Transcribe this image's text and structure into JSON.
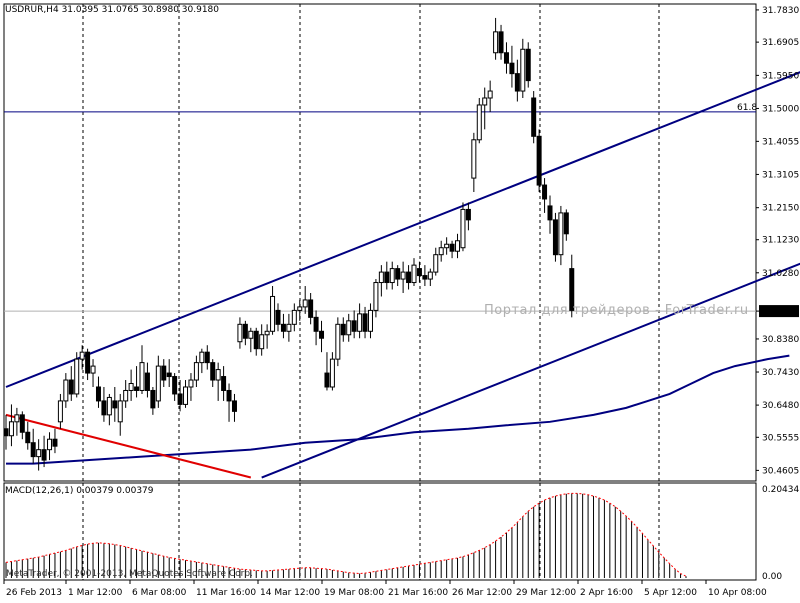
{
  "header": {
    "symbol": "USDRUR,H4",
    "ohlc": "31.0395 31.0765 30.8980 30.9180"
  },
  "indicator": {
    "macd_label": "MACD(12,26,1) 0.00379 0.00379"
  },
  "footer": {
    "copyright": "MetaTrader, © 2001-2013, MetaQuotes Software Corp."
  },
  "watermark": "Портал для трейдеров - ForTrader.ru",
  "colors": {
    "background": "#ffffff",
    "candle": "#000000",
    "channel": "#000080",
    "moving_average": "#000080",
    "fib_line": "#000080",
    "red_trendline": "#e00000",
    "macd_bars": "#000000",
    "macd_signal": "#ff0000",
    "grid_vertical": "#000000",
    "current_price_line": "#b0b0b0"
  },
  "chart_data": [
    {
      "type": "candlestick",
      "title": "USDRUR,H4",
      "ylim": [
        30.43,
        31.8
      ],
      "y_ticks": [
        "31.7830",
        "31.6905",
        "31.5950",
        "31.5000",
        "31.4055",
        "31.3105",
        "31.2150",
        "31.1230",
        "31.0280",
        "30.9180",
        "30.8380",
        "30.7430",
        "30.6480",
        "30.5555",
        "30.4605"
      ],
      "current_price": "30.9180",
      "fib_level": {
        "label": "61.8",
        "value": 31.49
      },
      "x_ticks": [
        "26 Feb 2013",
        "1 Mar 12:00",
        "6 Mar 08:00",
        "11 Mar 16:00",
        "14 Mar 12:00",
        "19 Mar 08:00",
        "21 Mar 16:00",
        "26 Mar 12:00",
        "29 Mar 12:00",
        "2 Apr 16:00",
        "5 Apr 12:00",
        "10 Apr 08:00"
      ],
      "grid": "vertical dashed",
      "candles": [
        [
          30.58,
          30.62,
          30.52,
          30.56
        ],
        [
          30.56,
          30.65,
          30.53,
          30.6
        ],
        [
          30.6,
          30.64,
          30.56,
          30.62
        ],
        [
          30.62,
          30.63,
          30.55,
          30.57
        ],
        [
          30.57,
          30.6,
          30.52,
          30.54
        ],
        [
          30.54,
          30.58,
          30.48,
          30.5
        ],
        [
          30.5,
          30.55,
          30.46,
          30.52
        ],
        [
          30.52,
          30.56,
          30.47,
          30.49
        ],
        [
          30.52,
          30.57,
          30.49,
          30.55
        ],
        [
          30.55,
          30.58,
          30.51,
          30.53
        ],
        [
          30.6,
          30.68,
          30.58,
          30.66
        ],
        [
          30.66,
          30.74,
          30.64,
          30.72
        ],
        [
          30.72,
          30.76,
          30.66,
          30.68
        ],
        [
          30.68,
          30.8,
          30.67,
          30.78
        ],
        [
          30.78,
          30.82,
          30.75,
          30.8
        ],
        [
          30.8,
          30.81,
          30.72,
          30.74
        ],
        [
          30.74,
          30.78,
          30.7,
          30.76
        ],
        [
          30.7,
          30.73,
          30.64,
          30.66
        ],
        [
          30.66,
          30.7,
          30.6,
          30.62
        ],
        [
          30.62,
          30.68,
          30.59,
          30.67
        ],
        [
          30.66,
          30.7,
          30.6,
          30.64
        ],
        [
          30.6,
          30.68,
          30.56,
          30.66
        ],
        [
          30.66,
          30.72,
          30.64,
          30.69
        ],
        [
          30.69,
          30.75,
          30.66,
          30.71
        ],
        [
          30.7,
          30.76,
          30.67,
          30.69
        ],
        [
          30.69,
          30.82,
          30.68,
          30.77
        ],
        [
          30.74,
          30.77,
          30.67,
          30.69
        ],
        [
          30.69,
          30.7,
          30.62,
          30.64
        ],
        [
          30.66,
          30.79,
          30.64,
          30.76
        ],
        [
          30.76,
          30.78,
          30.7,
          30.72
        ],
        [
          30.74,
          30.78,
          30.7,
          30.73
        ],
        [
          30.73,
          30.74,
          30.66,
          30.68
        ],
        [
          30.68,
          30.72,
          30.63,
          30.65
        ],
        [
          30.65,
          30.72,
          30.64,
          30.7
        ],
        [
          30.7,
          30.74,
          30.66,
          30.72
        ],
        [
          30.72,
          30.79,
          30.7,
          30.77
        ],
        [
          30.77,
          30.81,
          30.74,
          30.8
        ],
        [
          30.8,
          30.82,
          30.75,
          30.77
        ],
        [
          30.77,
          30.78,
          30.7,
          30.72
        ],
        [
          30.72,
          30.77,
          30.66,
          30.75
        ],
        [
          30.73,
          30.76,
          30.66,
          30.69
        ],
        [
          30.69,
          30.71,
          30.6,
          30.66
        ],
        [
          30.66,
          30.68,
          30.6,
          30.63
        ],
        [
          30.83,
          30.9,
          30.81,
          30.88
        ],
        [
          30.88,
          30.89,
          30.82,
          30.84
        ],
        [
          30.84,
          30.87,
          30.8,
          30.86
        ],
        [
          30.86,
          30.87,
          30.79,
          30.81
        ],
        [
          30.81,
          30.88,
          30.79,
          30.85
        ],
        [
          30.85,
          30.88,
          30.81,
          30.86
        ],
        [
          30.86,
          30.99,
          30.85,
          30.96
        ],
        [
          30.92,
          30.94,
          30.86,
          30.88
        ],
        [
          30.88,
          30.91,
          30.84,
          30.86
        ],
        [
          30.86,
          30.91,
          30.83,
          30.88
        ],
        [
          30.88,
          30.94,
          30.86,
          30.92
        ],
        [
          30.92,
          30.95,
          30.89,
          30.93
        ],
        [
          30.93,
          30.99,
          30.91,
          30.95
        ],
        [
          30.95,
          30.97,
          30.88,
          30.9
        ],
        [
          30.9,
          30.92,
          30.82,
          30.86
        ],
        [
          30.86,
          30.89,
          30.8,
          30.84
        ],
        [
          30.74,
          30.8,
          30.69,
          30.7
        ],
        [
          30.7,
          30.8,
          30.69,
          30.78
        ],
        [
          30.78,
          30.9,
          30.76,
          30.88
        ],
        [
          30.88,
          30.9,
          30.83,
          30.85
        ],
        [
          30.85,
          30.91,
          30.83,
          30.89
        ],
        [
          30.89,
          30.92,
          30.84,
          30.86
        ],
        [
          30.86,
          30.94,
          30.84,
          30.91
        ],
        [
          30.91,
          30.93,
          30.84,
          30.86
        ],
        [
          30.86,
          30.94,
          30.84,
          30.92
        ],
        [
          30.92,
          31.01,
          30.9,
          31.0
        ],
        [
          31.0,
          31.05,
          30.96,
          31.03
        ],
        [
          31.03,
          31.06,
          30.98,
          31.0
        ],
        [
          31.0,
          31.06,
          30.98,
          31.04
        ],
        [
          31.04,
          31.05,
          30.99,
          31.01
        ],
        [
          31.01,
          31.06,
          30.97,
          31.03
        ],
        [
          31.03,
          31.05,
          30.98,
          31.0
        ],
        [
          31.0,
          31.07,
          30.99,
          31.05
        ],
        [
          31.04,
          31.06,
          31.0,
          31.02
        ],
        [
          31.02,
          31.05,
          30.99,
          31.01
        ],
        [
          31.01,
          31.04,
          30.99,
          31.03
        ],
        [
          31.03,
          31.1,
          31.02,
          31.08
        ],
        [
          31.08,
          31.12,
          31.06,
          31.1
        ],
        [
          31.1,
          31.13,
          31.08,
          31.11
        ],
        [
          31.11,
          31.12,
          31.07,
          31.09
        ],
        [
          31.09,
          31.14,
          31.07,
          31.12
        ],
        [
          31.1,
          31.23,
          31.09,
          31.21
        ],
        [
          31.21,
          31.23,
          31.15,
          31.18
        ],
        [
          31.3,
          31.43,
          31.26,
          31.41
        ],
        [
          31.41,
          31.53,
          31.4,
          31.51
        ],
        [
          31.51,
          31.56,
          31.44,
          31.53
        ],
        [
          31.53,
          31.58,
          31.49,
          31.55
        ],
        [
          31.66,
          31.76,
          31.64,
          31.72
        ],
        [
          31.72,
          31.74,
          31.64,
          31.66
        ],
        [
          31.66,
          31.69,
          31.6,
          31.63
        ],
        [
          31.63,
          31.68,
          31.56,
          31.6
        ],
        [
          31.6,
          31.64,
          31.52,
          31.55
        ],
        [
          31.55,
          31.7,
          31.53,
          31.67
        ],
        [
          31.67,
          31.69,
          31.56,
          31.58
        ],
        [
          31.53,
          31.55,
          31.4,
          31.42
        ],
        [
          31.42,
          31.44,
          31.26,
          31.28
        ],
        [
          31.28,
          31.3,
          31.2,
          31.24
        ],
        [
          31.22,
          31.25,
          31.14,
          31.18
        ],
        [
          31.18,
          31.2,
          31.06,
          31.08
        ],
        [
          31.08,
          31.22,
          31.05,
          31.2
        ],
        [
          31.2,
          31.21,
          31.12,
          31.14
        ],
        [
          31.04,
          31.08,
          30.9,
          30.92
        ]
      ],
      "lines": {
        "channel_upper": [
          [
            0,
            30.7
          ],
          [
            155,
            31.66
          ]
        ],
        "channel_lower": [
          [
            47,
            30.44
          ],
          [
            155,
            31.11
          ]
        ],
        "red_trendline": [
          [
            0,
            30.62
          ],
          [
            45,
            30.44
          ]
        ],
        "moving_average": [
          [
            0,
            30.48
          ],
          [
            5,
            30.48
          ],
          [
            15,
            30.49
          ],
          [
            25,
            30.5
          ],
          [
            35,
            30.51
          ],
          [
            45,
            30.52
          ],
          [
            55,
            30.54
          ],
          [
            65,
            30.55
          ],
          [
            75,
            30.57
          ],
          [
            85,
            30.58
          ],
          [
            92,
            30.59
          ],
          [
            100,
            30.6
          ],
          [
            108,
            30.62
          ],
          [
            114,
            30.64
          ],
          [
            118,
            30.66
          ],
          [
            122,
            30.68
          ],
          [
            126,
            30.71
          ],
          [
            130,
            30.74
          ],
          [
            134,
            30.76
          ],
          [
            140,
            30.78
          ],
          [
            144,
            30.79
          ]
        ]
      }
    },
    {
      "type": "bar",
      "title": "MACD(12,26,1) 0.00379 0.00379",
      "ylim": [
        0,
        0.20434
      ],
      "y_ticks": [
        "0.20434",
        "0.00"
      ],
      "values": [
        0.035,
        0.037,
        0.039,
        0.041,
        0.043,
        0.045,
        0.047,
        0.05,
        0.053,
        0.056,
        0.059,
        0.062,
        0.066,
        0.07,
        0.073,
        0.076,
        0.078,
        0.079,
        0.078,
        0.077,
        0.075,
        0.073,
        0.07,
        0.067,
        0.064,
        0.061,
        0.058,
        0.055,
        0.052,
        0.049,
        0.046,
        0.044,
        0.042,
        0.04,
        0.038,
        0.036,
        0.034,
        0.032,
        0.03,
        0.028,
        0.026,
        0.024,
        0.022,
        0.02,
        0.019,
        0.018,
        0.017,
        0.016,
        0.016,
        0.017,
        0.018,
        0.019,
        0.02,
        0.021,
        0.022,
        0.023,
        0.023,
        0.022,
        0.021,
        0.02,
        0.018,
        0.016,
        0.014,
        0.012,
        0.011,
        0.01,
        0.011,
        0.013,
        0.015,
        0.017,
        0.019,
        0.021,
        0.023,
        0.025,
        0.027,
        0.029,
        0.031,
        0.033,
        0.035,
        0.037,
        0.039,
        0.041,
        0.043,
        0.045,
        0.048,
        0.052,
        0.057,
        0.062,
        0.068,
        0.075,
        0.083,
        0.092,
        0.102,
        0.113,
        0.125,
        0.138,
        0.15,
        0.16,
        0.168,
        0.175,
        0.18,
        0.184,
        0.187,
        0.189,
        0.19,
        0.19,
        0.189,
        0.187,
        0.184,
        0.18,
        0.175,
        0.168,
        0.16,
        0.15,
        0.139,
        0.127,
        0.114,
        0.1,
        0.086,
        0.072,
        0.058,
        0.045,
        0.032,
        0.02,
        0.01,
        0.004
      ]
    }
  ]
}
